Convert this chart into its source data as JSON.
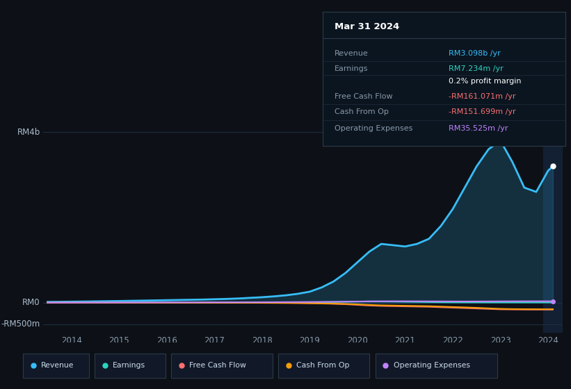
{
  "bg_color": "#0d1117",
  "plot_bg_color": "#0d1117",
  "panel_bg_color": "#111827",
  "grid_color": "#1e2d3d",
  "y_labels": [
    "RM4b",
    "RM0",
    "-RM500m"
  ],
  "y_ticks": [
    4000000000,
    0,
    -500000000
  ],
  "x_tick_positions": [
    2014,
    2015,
    2016,
    2017,
    2018,
    2019,
    2020,
    2021,
    2022,
    2023,
    2024
  ],
  "years": [
    2013.5,
    2013.75,
    2014.0,
    2014.25,
    2014.5,
    2014.75,
    2015.0,
    2015.25,
    2015.5,
    2015.75,
    2016.0,
    2016.25,
    2016.5,
    2016.75,
    2017.0,
    2017.25,
    2017.5,
    2017.75,
    2018.0,
    2018.25,
    2018.5,
    2018.75,
    2019.0,
    2019.25,
    2019.5,
    2019.75,
    2020.0,
    2020.25,
    2020.5,
    2020.75,
    2021.0,
    2021.25,
    2021.5,
    2021.75,
    2022.0,
    2022.25,
    2022.5,
    2022.75,
    2023.0,
    2023.25,
    2023.5,
    2023.75,
    2024.0,
    2024.1
  ],
  "revenue": [
    20000000,
    22000000,
    25000000,
    28000000,
    32000000,
    36000000,
    40000000,
    45000000,
    50000000,
    55000000,
    60000000,
    65000000,
    70000000,
    75000000,
    82000000,
    90000000,
    100000000,
    115000000,
    130000000,
    150000000,
    175000000,
    210000000,
    260000000,
    360000000,
    500000000,
    700000000,
    950000000,
    1200000000,
    1380000000,
    1350000000,
    1320000000,
    1380000000,
    1500000000,
    1800000000,
    2200000000,
    2700000000,
    3200000000,
    3600000000,
    3800000000,
    3300000000,
    2700000000,
    2600000000,
    3098000000,
    3200000000
  ],
  "earnings": [
    2000000,
    2000000,
    2000000,
    2000000,
    2000000,
    2000000,
    2000000,
    2000000,
    2000000,
    2000000,
    2000000,
    3000000,
    3000000,
    3000000,
    3000000,
    4000000,
    4000000,
    5000000,
    5000000,
    6000000,
    7000000,
    8000000,
    10000000,
    14000000,
    18000000,
    22000000,
    28000000,
    32000000,
    30000000,
    28000000,
    24000000,
    20000000,
    16000000,
    12000000,
    10000000,
    9000000,
    8500000,
    8000000,
    7500000,
    7300000,
    7234000,
    7234000,
    7234000,
    7234000
  ],
  "free_cash_flow": [
    0,
    0,
    0,
    0,
    0,
    0,
    0,
    0,
    0,
    0,
    0,
    0,
    0,
    0,
    0,
    0,
    -1000000,
    -2000000,
    -3000000,
    -4000000,
    -5000000,
    -8000000,
    -12000000,
    -18000000,
    -25000000,
    -35000000,
    -50000000,
    -65000000,
    -75000000,
    -80000000,
    -85000000,
    -90000000,
    -95000000,
    -105000000,
    -115000000,
    -125000000,
    -135000000,
    -145000000,
    -155000000,
    -158000000,
    -160000000,
    -161000000,
    -161071000,
    -161071000
  ],
  "cash_from_op": [
    0,
    0,
    0,
    0,
    0,
    0,
    0,
    0,
    0,
    0,
    0,
    0,
    0,
    0,
    0,
    0,
    -1000000,
    -1500000,
    -2000000,
    -3000000,
    -4000000,
    -6000000,
    -10000000,
    -15000000,
    -20000000,
    -28000000,
    -38000000,
    -50000000,
    -60000000,
    -65000000,
    -70000000,
    -75000000,
    -80000000,
    -90000000,
    -100000000,
    -108000000,
    -118000000,
    -130000000,
    -142000000,
    -148000000,
    -150000000,
    -151000000,
    -151699000,
    -151699000
  ],
  "op_expenses": [
    3000000,
    3000000,
    3500000,
    4000000,
    4500000,
    5000000,
    5500000,
    6000000,
    6500000,
    7000000,
    7500000,
    8000000,
    8500000,
    9000000,
    9500000,
    10000000,
    11000000,
    12000000,
    13000000,
    14000000,
    15500000,
    17000000,
    19000000,
    21000000,
    23000000,
    26000000,
    29000000,
    32000000,
    34000000,
    35000000,
    35000000,
    34000000,
    33000000,
    32000000,
    31000000,
    30000000,
    31000000,
    32000000,
    33000000,
    34000000,
    35000000,
    35525000,
    35525000,
    35525000
  ],
  "revenue_color": "#38bdf8",
  "earnings_color": "#2dd4bf",
  "fcf_color": "#f87171",
  "cfo_color": "#f59e0b",
  "opex_color": "#c084fc",
  "legend_labels": [
    "Revenue",
    "Earnings",
    "Free Cash Flow",
    "Cash From Op",
    "Operating Expenses"
  ],
  "legend_colors": [
    "#38bdf8",
    "#2dd4bf",
    "#f87171",
    "#f59e0b",
    "#c084fc"
  ],
  "ylim_min": -700000000,
  "ylim_max": 4500000000,
  "xlim_min": 2013.4,
  "xlim_max": 2024.3,
  "highlight_x": 2023.9,
  "tooltip_title": "Mar 31 2024",
  "tooltip_rows": [
    {
      "label": "Revenue",
      "value": "RM3.098b /yr",
      "value_color": "#38bdf8",
      "label_color": "#8899aa"
    },
    {
      "label": "Earnings",
      "value": "RM7.234m /yr",
      "value_color": "#2dd4bf",
      "label_color": "#8899aa"
    },
    {
      "label": "",
      "value": "0.2% profit margin",
      "value_color": "#ffffff",
      "label_color": ""
    },
    {
      "label": "Free Cash Flow",
      "value": "-RM161.071m /yr",
      "value_color": "#f87171",
      "label_color": "#8899aa"
    },
    {
      "label": "Cash From Op",
      "value": "-RM151.699m /yr",
      "value_color": "#f87171",
      "label_color": "#8899aa"
    },
    {
      "label": "Operating Expenses",
      "value": "RM35.525m /yr",
      "value_color": "#c084fc",
      "label_color": "#8899aa"
    }
  ]
}
